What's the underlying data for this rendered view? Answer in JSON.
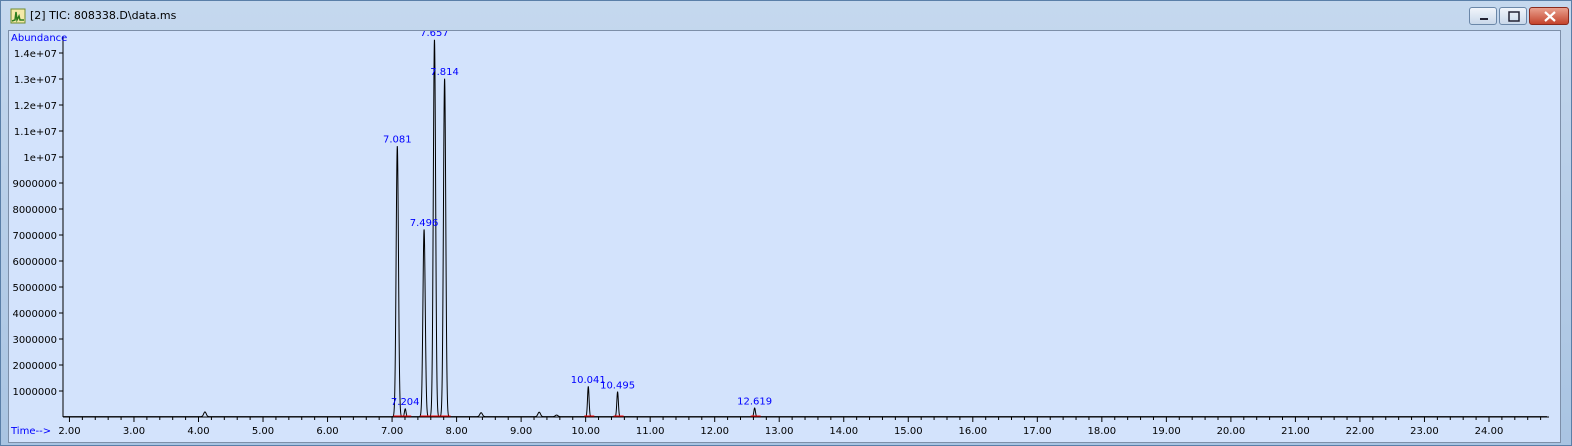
{
  "window": {
    "title": "[2] TIC: 808338.D\\data.ms",
    "icon": "chromatogram-icon",
    "buttons": [
      "minimize-icon",
      "maximize-icon",
      "close-icon"
    ]
  },
  "colors": {
    "plot_bg": "#d3e3fc",
    "trace": "#000000",
    "label_blue": "#0000ff",
    "baseline_red": "#ff0000"
  },
  "chart_data": {
    "type": "line",
    "ylabel": "Abundance",
    "xlabel": "Time-->",
    "xlim": [
      1.9,
      24.93
    ],
    "ylim": [
      0,
      14500000
    ],
    "x_ticks": [
      "2.00",
      "3.00",
      "4.00",
      "5.00",
      "6.00",
      "7.00",
      "8.00",
      "9.00",
      "10.00",
      "11.00",
      "12.00",
      "13.00",
      "14.00",
      "15.00",
      "16.00",
      "17.00",
      "18.00",
      "19.00",
      "20.00",
      "21.00",
      "22.00",
      "23.00",
      "24.00"
    ],
    "y_ticks": [
      "1000000",
      "2000000",
      "3000000",
      "4000000",
      "5000000",
      "6000000",
      "7000000",
      "8000000",
      "9000000",
      "1e+07",
      "1.1e+07",
      "1.2e+07",
      "1.3e+07",
      "1.4e+07"
    ],
    "grid": false,
    "peaks": [
      {
        "label": "7.081",
        "x": 7.081,
        "y": 10400000
      },
      {
        "label": "7.204",
        "x": 7.204,
        "y": 300000
      },
      {
        "label": "7.496",
        "x": 7.496,
        "y": 7200000
      },
      {
        "label": "7.657",
        "x": 7.657,
        "y": 14500000
      },
      {
        "label": "7.814",
        "x": 7.814,
        "y": 13000000
      },
      {
        "label": "10.041",
        "x": 10.041,
        "y": 1150000
      },
      {
        "label": "10.495",
        "x": 10.495,
        "y": 950000
      },
      {
        "label": "12.619",
        "x": 12.619,
        "y": 330000
      }
    ],
    "minor_peaks": [
      {
        "x": 4.1,
        "y": 180000
      },
      {
        "x": 8.38,
        "y": 150000
      },
      {
        "x": 9.28,
        "y": 170000
      },
      {
        "x": 9.55,
        "y": 60000
      }
    ]
  }
}
